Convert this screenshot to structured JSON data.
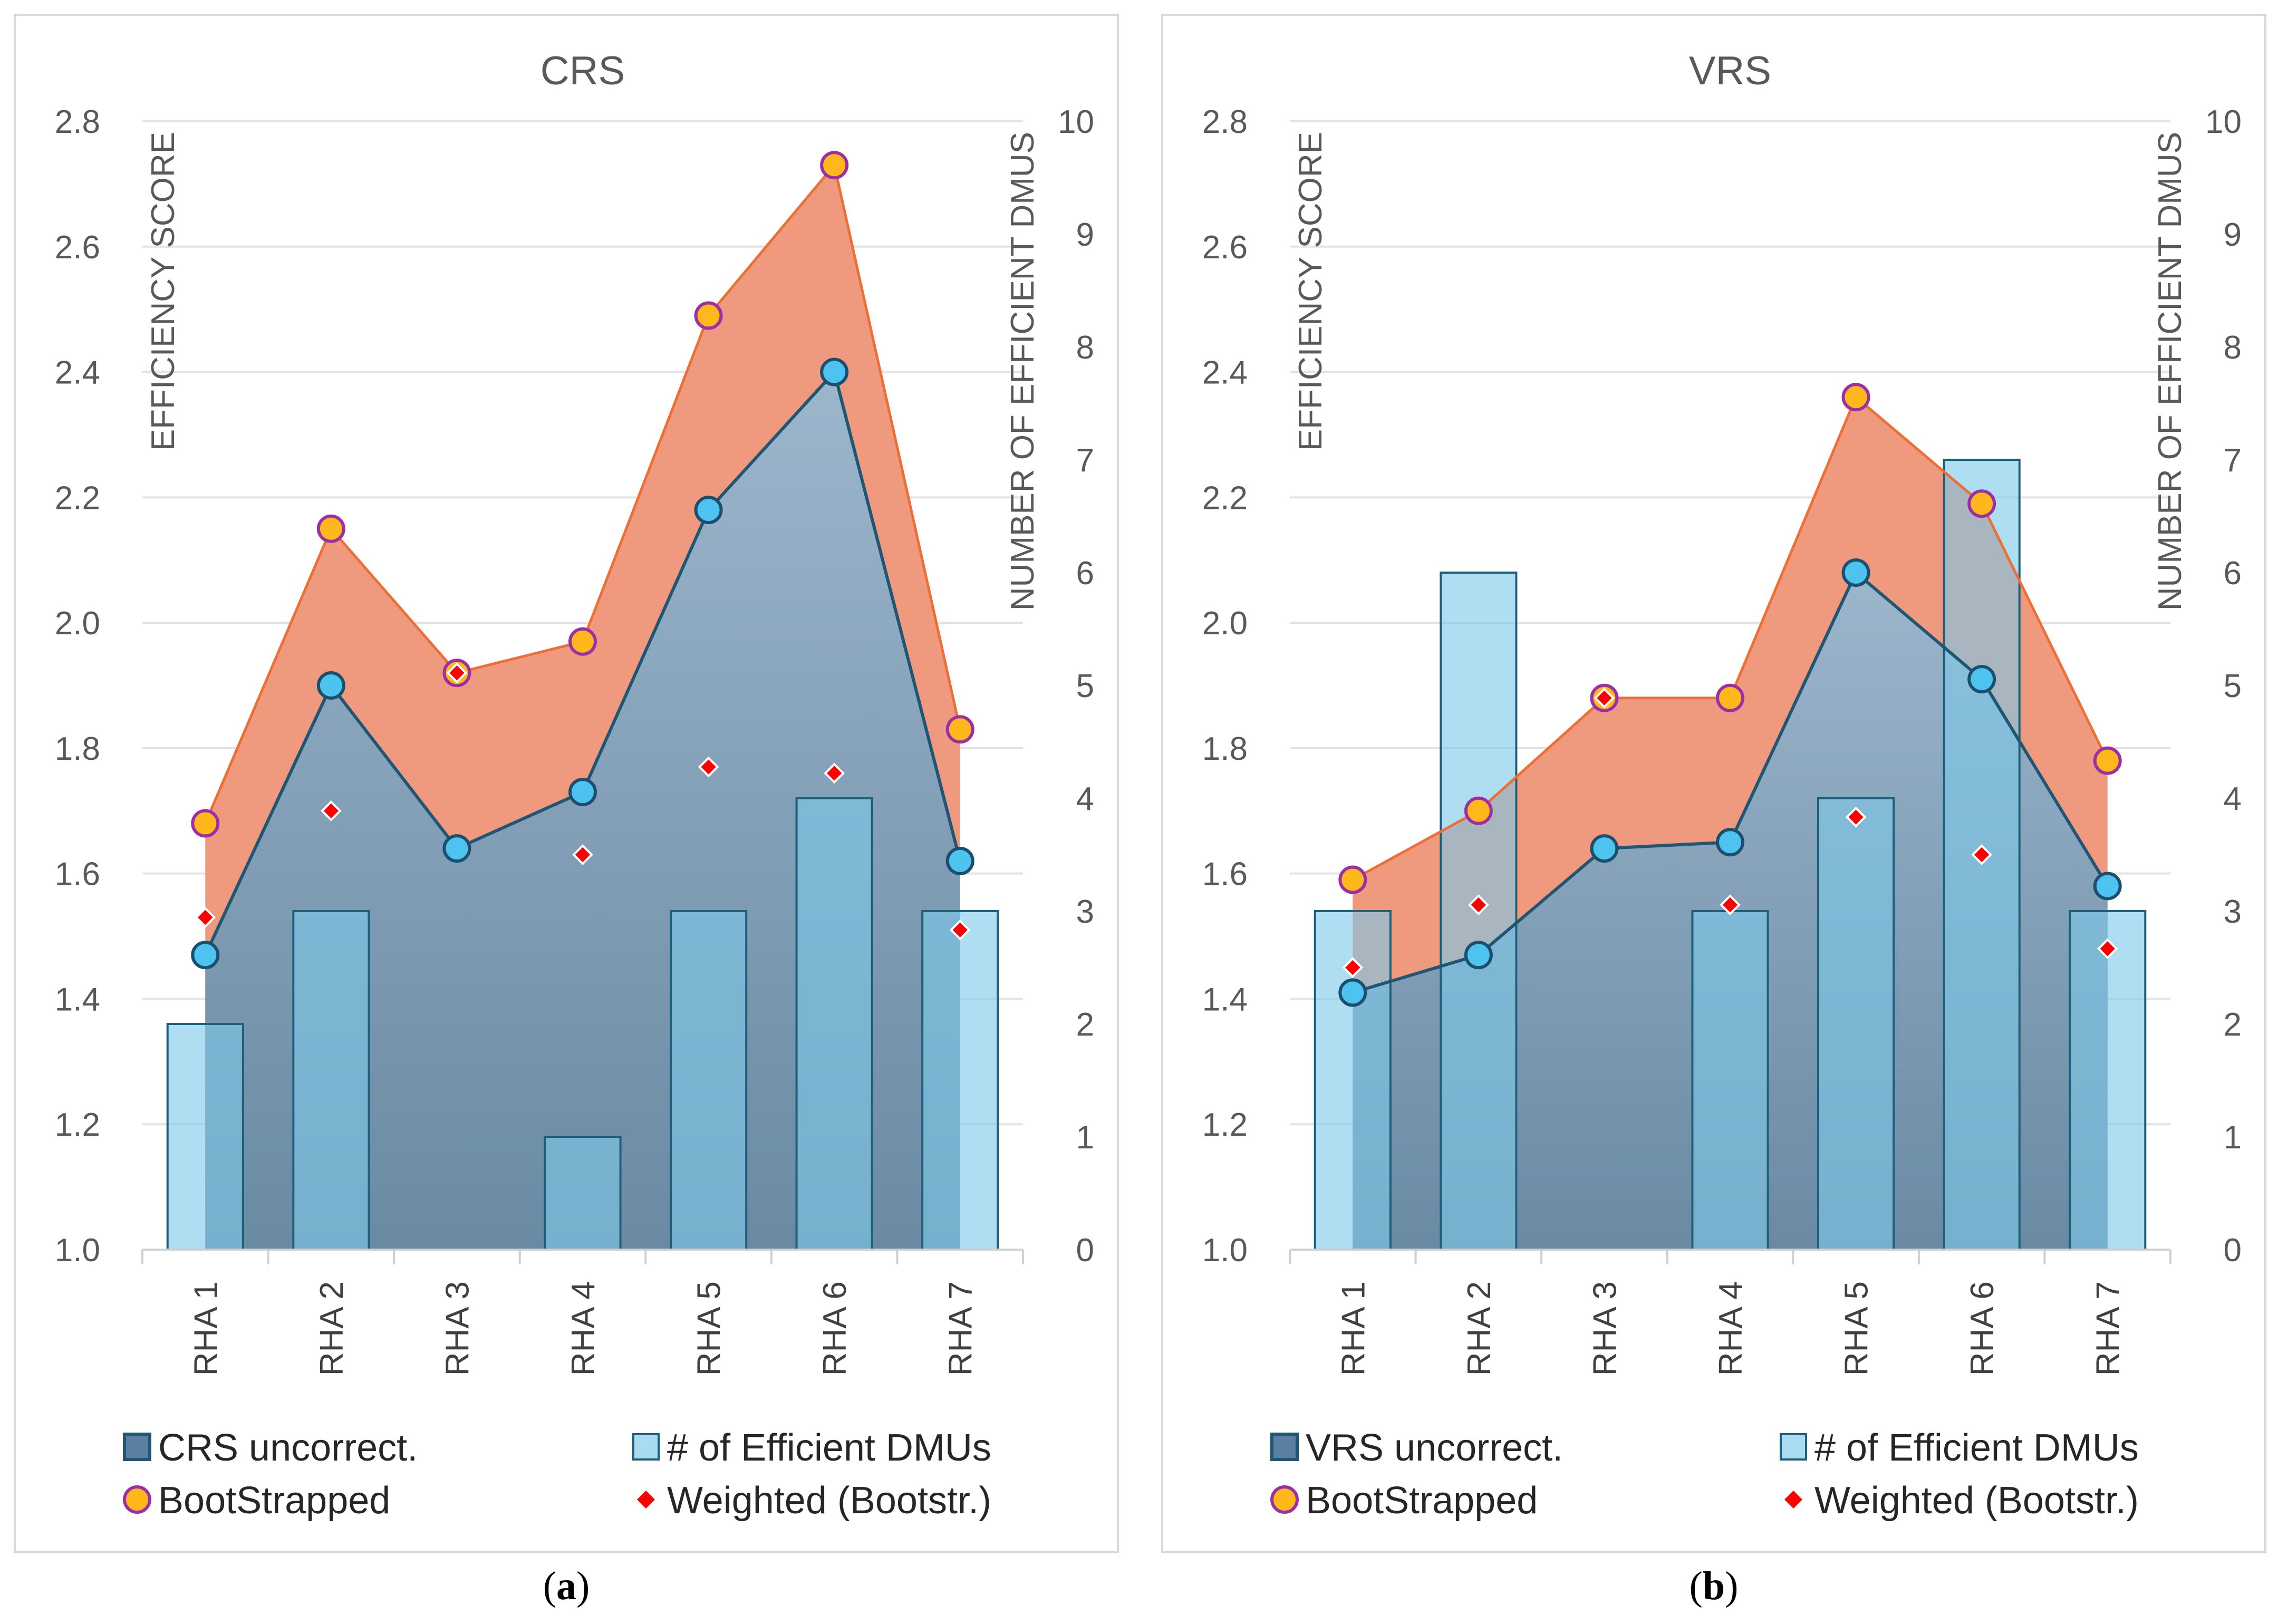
{
  "charts": [
    {
      "id": "a",
      "title": "CRS",
      "y_left_title": "EFFICIENCY SCORE",
      "y_right_title": "NUMBER OF EFFICIENT DMUS",
      "legend": {
        "area_uncorrected": "CRS uncorrect.",
        "bars": "# of Efficient DMUs",
        "bootstrapped": "BootStrapped",
        "weighted": "Weighted (Bootstr.)"
      },
      "caption_letter": "a"
    },
    {
      "id": "b",
      "title": "VRS",
      "y_left_title": "EFFICIENCY SCORE",
      "y_right_title": "NUMBER OF EFFICIENT DMUS",
      "legend": {
        "area_uncorrected": "VRS uncorrect.",
        "bars": "# of Efficient DMUs",
        "bootstrapped": "BootStrapped",
        "weighted": "Weighted (Bootstr.)"
      },
      "caption_letter": "b"
    }
  ],
  "chart_data": [
    {
      "type": "combo-area-bar-line",
      "title": "CRS",
      "categories": [
        "RHA 1",
        "RHA 2",
        "RHA 3",
        "RHA 4",
        "RHA 5",
        "RHA 6",
        "RHA 7"
      ],
      "ylim_left": [
        1.0,
        2.8
      ],
      "yticks_left": [
        "1.0",
        "1.2",
        "1.4",
        "1.6",
        "1.8",
        "2.0",
        "2.2",
        "2.4",
        "2.6",
        "2.8"
      ],
      "ylim_right": [
        0,
        10
      ],
      "yticks_right": [
        "0",
        "1",
        "2",
        "3",
        "4",
        "5",
        "6",
        "7",
        "8",
        "9",
        "10"
      ],
      "series": [
        {
          "name": "CRS uncorrect.",
          "axis": "left",
          "values": [
            1.47,
            1.9,
            1.64,
            1.73,
            2.18,
            2.4,
            1.62
          ]
        },
        {
          "name": "BootStrapped",
          "axis": "left",
          "values": [
            1.68,
            2.15,
            1.92,
            1.97,
            2.49,
            2.73,
            1.83
          ]
        },
        {
          "name": "Weighted (Bootstr.)",
          "axis": "left",
          "values": [
            1.53,
            1.7,
            1.92,
            1.63,
            1.77,
            1.76,
            1.51
          ]
        },
        {
          "name": "# of Efficient DMUs",
          "axis": "right",
          "values": [
            2,
            3,
            0,
            1,
            3,
            4,
            3
          ]
        }
      ],
      "colors": {
        "area": "#5b7fa3",
        "bootstrap_area": "#ef9a7f",
        "bootstrap_line": "#ed6f36",
        "dot": "#4fc3ef",
        "dot_stroke": "#1a4f6e",
        "orange_dot": "#ffb81c",
        "orange_stroke": "#9b2fa5",
        "diamond": "#ff0000",
        "bar": "#7ec8e8"
      }
    },
    {
      "type": "combo-area-bar-line",
      "title": "VRS",
      "categories": [
        "RHA 1",
        "RHA 2",
        "RHA 3",
        "RHA 4",
        "RHA 5",
        "RHA 6",
        "RHA 7"
      ],
      "ylim_left": [
        1.0,
        2.8
      ],
      "yticks_left": [
        "1.0",
        "1.2",
        "1.4",
        "1.6",
        "1.8",
        "2.0",
        "2.2",
        "2.4",
        "2.6",
        "2.8"
      ],
      "ylim_right": [
        0,
        10
      ],
      "yticks_right": [
        "0",
        "1",
        "2",
        "3",
        "4",
        "5",
        "6",
        "7",
        "8",
        "9",
        "10"
      ],
      "series": [
        {
          "name": "VRS uncorrect.",
          "axis": "left",
          "values": [
            1.41,
            1.47,
            1.64,
            1.65,
            2.08,
            1.91,
            1.58
          ]
        },
        {
          "name": "BootStrapped",
          "axis": "left",
          "values": [
            1.59,
            1.7,
            1.88,
            1.88,
            2.36,
            2.19,
            1.78
          ]
        },
        {
          "name": "Weighted (Bootstr.)",
          "axis": "left",
          "values": [
            1.45,
            1.55,
            1.88,
            1.55,
            1.69,
            1.63,
            1.48
          ]
        },
        {
          "name": "# of Efficient DMUs",
          "axis": "right",
          "values": [
            3,
            6,
            0,
            3,
            4,
            7,
            3
          ]
        }
      ],
      "colors": {
        "area": "#5b7fa3",
        "bootstrap_area": "#ef9a7f",
        "bootstrap_line": "#ed6f36",
        "dot": "#4fc3ef",
        "dot_stroke": "#1a4f6e",
        "orange_dot": "#ffb81c",
        "orange_stroke": "#9b2fa5",
        "diamond": "#ff0000",
        "bar": "#7ec8e8"
      }
    }
  ]
}
